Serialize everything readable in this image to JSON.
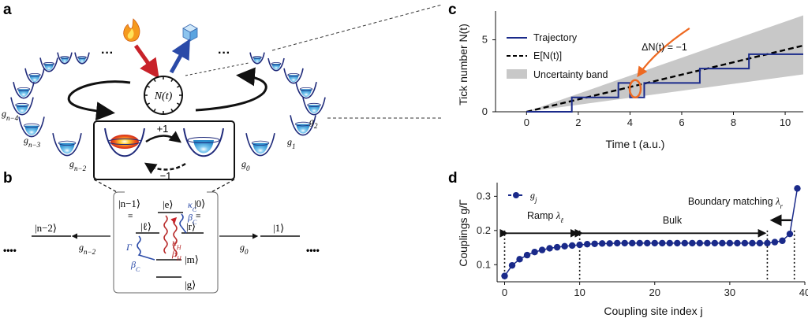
{
  "panels": {
    "a": "a",
    "b": "b",
    "c": "c",
    "d": "d"
  },
  "panel_a": {
    "clock_label": "N(t)",
    "plus_one": "+1",
    "minus_one": "−1",
    "couplings": [
      "g",
      "g",
      "g",
      "g",
      "g",
      "g"
    ],
    "coupling_subs": [
      "n−4",
      "n−3",
      "n−2",
      "0",
      "1",
      "2"
    ],
    "dots": "···",
    "colors": {
      "hot": "#e0201a",
      "cold": "#1a3aa0",
      "well": "#1f2a7a",
      "water": "#3aa0dc"
    }
  },
  "panel_b": {
    "kets": {
      "n_minus_1": "|n−1⟩",
      "zero": "|0⟩",
      "e": "|e⟩",
      "ell": "|ℓ⟩",
      "r": "|r⟩",
      "m": "|m⟩",
      "g": "|g⟩",
      "n_minus_2": "|n−2⟩",
      "one": "|1⟩"
    },
    "rates": {
      "kappa_c": "κ",
      "kappa_c_sub": "C",
      "beta_c_right": "β",
      "beta_c_right_sub": "C",
      "gamma": "Γ",
      "beta_c_left": "β",
      "beta_c_left_sub": "C",
      "kappa_h": "κ",
      "kappa_h_sub": "H",
      "beta_h": "β",
      "beta_h_sub": "H"
    },
    "g_left": "g",
    "g_left_sub": "n−2",
    "g_right": "g",
    "g_right_sub": "0",
    "dots_left": "••••",
    "dots_right": "••••"
  },
  "chart_data": [
    {
      "panel": "c",
      "type": "line",
      "xlabel": "Time t (a.u.)",
      "ylabel": "Tick number N(t)",
      "xlim": [
        -1.2,
        10.7
      ],
      "ylim": [
        0,
        7
      ],
      "xticks": [
        0,
        2,
        4,
        6,
        8,
        10
      ],
      "yticks": [
        0,
        5
      ],
      "legend_position": "top-left",
      "annotation": "ΔN(t) = −1",
      "series": [
        {
          "name": "Trajectory",
          "style": "step",
          "color": "#1a2a8a",
          "points": [
            [
              0,
              0
            ],
            [
              1.75,
              0
            ],
            [
              1.75,
              1
            ],
            [
              3.55,
              1
            ],
            [
              3.55,
              2
            ],
            [
              4.0,
              2
            ],
            [
              4.0,
              1
            ],
            [
              4.55,
              1
            ],
            [
              4.55,
              2
            ],
            [
              6.7,
              2
            ],
            [
              6.7,
              3
            ],
            [
              8.6,
              3
            ],
            [
              8.6,
              4
            ],
            [
              10.7,
              4
            ]
          ]
        },
        {
          "name": "E[N(t)]",
          "style": "dashed",
          "color": "#000000",
          "points": [
            [
              0,
              0
            ],
            [
              10.7,
              4.6
            ]
          ]
        },
        {
          "name": "Uncertainty band",
          "style": "band",
          "color": "#c8c8c8",
          "lower": [
            [
              0,
              0
            ],
            [
              10.7,
              2.6
            ]
          ],
          "upper": [
            [
              0,
              0
            ],
            [
              10.7,
              6.7
            ]
          ]
        }
      ]
    },
    {
      "panel": "d",
      "type": "scatter",
      "xlabel": "Coupling site index j",
      "ylabel": "Couplings g/Γ",
      "xlim": [
        -1,
        40
      ],
      "ylim": [
        0.05,
        0.34
      ],
      "xticks": [
        0,
        10,
        20,
        30,
        40
      ],
      "yticks": [
        0.1,
        0.2,
        0.3
      ],
      "legend_position": "top-left",
      "series": [
        {
          "name": "g",
          "name_sub": "j",
          "color": "#1a2a8a",
          "x": [
            0,
            1,
            2,
            3,
            4,
            5,
            6,
            7,
            8,
            9,
            10,
            11,
            12,
            13,
            14,
            15,
            16,
            17,
            18,
            19,
            20,
            21,
            22,
            23,
            24,
            25,
            26,
            27,
            28,
            29,
            30,
            31,
            32,
            33,
            34,
            35,
            36,
            37,
            38,
            39
          ],
          "y": [
            0.067,
            0.098,
            0.116,
            0.128,
            0.137,
            0.143,
            0.148,
            0.151,
            0.154,
            0.156,
            0.158,
            0.16,
            0.161,
            0.162,
            0.162,
            0.163,
            0.163,
            0.163,
            0.163,
            0.163,
            0.163,
            0.163,
            0.163,
            0.163,
            0.163,
            0.163,
            0.163,
            0.163,
            0.163,
            0.163,
            0.163,
            0.163,
            0.163,
            0.163,
            0.163,
            0.163,
            0.166,
            0.17,
            0.19,
            0.323
          ]
        }
      ],
      "vlines": [
        0,
        10,
        35,
        38.6
      ],
      "annotations": {
        "ramp": "Ramp",
        "ramp_symbol": "λ",
        "ramp_sub": "ℓ",
        "bulk": "Bulk",
        "boundary": "Boundary matching",
        "boundary_symbol": "λ",
        "boundary_sub": "r"
      }
    }
  ]
}
